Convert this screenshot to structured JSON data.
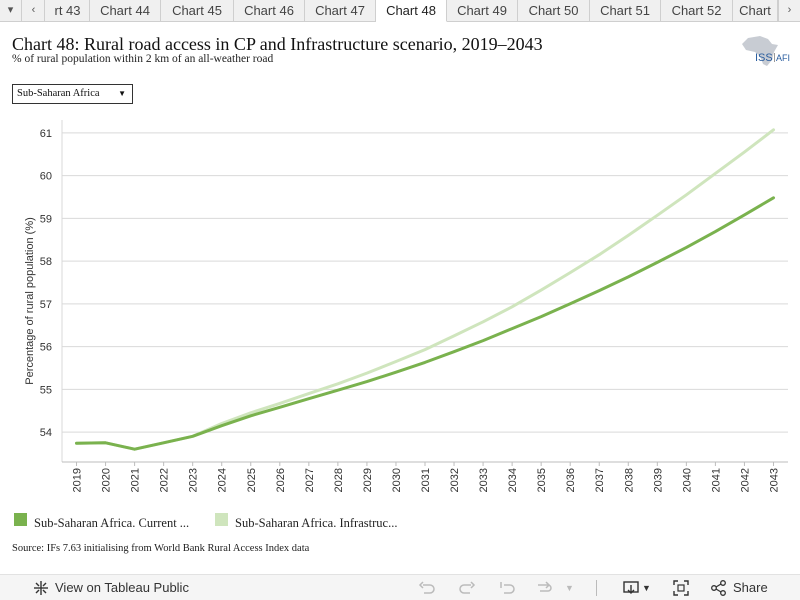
{
  "tabs": {
    "items": [
      "rt 43",
      "Chart 44",
      "Chart 45",
      "Chart 46",
      "Chart 47",
      "Chart 48",
      "Chart 49",
      "Chart 50",
      "Chart 51",
      "Chart 52",
      "Chart"
    ],
    "active_index": 5
  },
  "header": {
    "title": "Chart 48: Rural road access in CP and Infrastructure scenario, 2019–2043",
    "subtitle": "% of rural population within 2 km of an all-weather road",
    "logo_text": "ISS",
    "logo_text_2": "AFI"
  },
  "filter": {
    "selected": "Sub-Saharan Africa"
  },
  "legend": {
    "items": [
      {
        "label": "Sub-Saharan Africa. Current ...",
        "color": "#7ab24e"
      },
      {
        "label": "Sub-Saharan Africa. Infrastruc...",
        "color": "#cfe5bd"
      }
    ]
  },
  "source": "Source: IFs 7.63 initialising from World Bank Rural Access Index data",
  "toolbar": {
    "view_label": "View on Tableau Public",
    "share_label": "Share"
  },
  "chart_data": {
    "type": "line",
    "ylabel": "Percentage of rural population (%)",
    "xlabel": "",
    "ylim": [
      53.3,
      61.3
    ],
    "yticks": [
      54,
      55,
      56,
      57,
      58,
      59,
      60,
      61
    ],
    "grid": true,
    "x": [
      "2019",
      "2020",
      "2021",
      "2022",
      "2023",
      "2024",
      "2025",
      "2026",
      "2027",
      "2028",
      "2029",
      "2030",
      "2031",
      "2032",
      "2033",
      "2034",
      "2035",
      "2036",
      "2037",
      "2038",
      "2039",
      "2040",
      "2041",
      "2042",
      "2043"
    ],
    "series": [
      {
        "name": "Sub-Saharan Africa. Current ...",
        "color": "#7ab24e",
        "values": [
          53.74,
          53.75,
          53.6,
          53.75,
          53.9,
          54.15,
          54.38,
          54.58,
          54.78,
          54.98,
          55.18,
          55.4,
          55.63,
          55.88,
          56.14,
          56.42,
          56.7,
          57.0,
          57.31,
          57.63,
          57.97,
          58.32,
          58.69,
          59.08,
          59.48
        ]
      },
      {
        "name": "Sub-Saharan Africa. Infrastruc...",
        "color": "#cfe5bd",
        "values": [
          53.74,
          53.75,
          53.6,
          53.75,
          53.9,
          54.2,
          54.45,
          54.67,
          54.9,
          55.13,
          55.38,
          55.65,
          55.93,
          56.25,
          56.58,
          56.93,
          57.32,
          57.73,
          58.15,
          58.6,
          59.07,
          59.55,
          60.05,
          60.55,
          61.07
        ]
      }
    ]
  }
}
